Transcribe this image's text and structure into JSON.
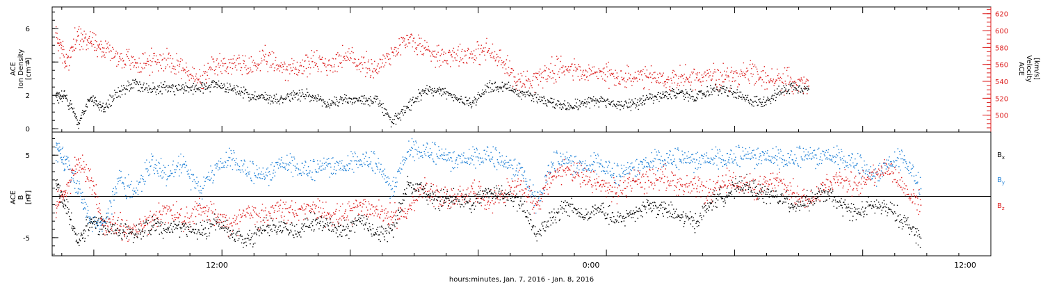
{
  "figure": {
    "xlabel": "hours:minutes, Jan.  7, 2016 - Jan.  8, 2016",
    "x_ticks": [
      "12:00",
      "0:00",
      "12:00"
    ]
  },
  "colors": {
    "black": "#000000",
    "red": "#dd1c1c",
    "blue": "#1c7fd6"
  },
  "chart_data": [
    {
      "type": "scatter",
      "panel": "top",
      "x_unit": "hours since 2016-01-07 00:00",
      "xlim": [
        6.7,
        36.0
      ],
      "ylabel_left": [
        "ACE",
        "Ion Density",
        "[cm⁻³]"
      ],
      "ylim_left": [
        -0.2,
        7.3
      ],
      "yticks_left": [
        0,
        2,
        4,
        6
      ],
      "ylabel_right": [
        "ACE",
        "Velocity",
        "[km/s]"
      ],
      "ylim_right": [
        480,
        628
      ],
      "yticks_right": [
        500,
        520,
        540,
        560,
        580,
        600,
        620
      ],
      "series": [
        {
          "name": "Ion Density",
          "axis": "left",
          "color": "#000000",
          "x": [
            6.8,
            7.1,
            7.5,
            7.9,
            8.3,
            8.8,
            9.3,
            9.8,
            10.3,
            10.8,
            11.3,
            11.8,
            12.3,
            12.8,
            13.3,
            13.8,
            14.3,
            14.8,
            15.3,
            15.8,
            16.3,
            16.8,
            17.3,
            17.8,
            18.3,
            18.8,
            19.3,
            19.8,
            20.3,
            20.8,
            21.3,
            21.8,
            22.3,
            22.8,
            23.3,
            23.8,
            24.3,
            24.8,
            25.3,
            25.8,
            26.3,
            26.8,
            27.3,
            27.8,
            28.3,
            28.8,
            29.3,
            29.8,
            30.3
          ],
          "y": [
            2.0,
            2.0,
            0.4,
            1.9,
            1.2,
            2.3,
            2.7,
            2.4,
            2.5,
            2.4,
            2.5,
            2.7,
            2.4,
            2.1,
            1.9,
            1.8,
            2.1,
            1.9,
            1.5,
            1.8,
            1.7,
            1.8,
            0.4,
            1.3,
            2.3,
            2.4,
            1.8,
            1.6,
            2.5,
            2.6,
            2.2,
            1.9,
            1.6,
            1.4,
            1.6,
            1.7,
            1.5,
            1.5,
            1.8,
            2.0,
            2.2,
            1.9,
            2.4,
            2.3,
            1.8,
            1.6,
            2.1,
            2.6,
            2.4
          ]
        },
        {
          "name": "Velocity",
          "axis": "right",
          "color": "#dd1c1c",
          "x": [
            6.8,
            7.1,
            7.5,
            7.9,
            8.3,
            8.8,
            9.3,
            9.8,
            10.3,
            10.8,
            11.3,
            11.8,
            12.3,
            12.8,
            13.3,
            13.8,
            14.3,
            14.8,
            15.3,
            15.8,
            16.3,
            16.8,
            17.3,
            17.8,
            18.3,
            18.8,
            19.3,
            19.8,
            20.3,
            20.8,
            21.3,
            21.8,
            22.3,
            22.8,
            23.3,
            23.8,
            24.3,
            24.8,
            25.3,
            25.8,
            26.3,
            26.8,
            27.3,
            27.8,
            28.3,
            28.8,
            29.3,
            29.8,
            30.3
          ],
          "y": [
            598,
            562,
            595,
            588,
            580,
            568,
            562,
            564,
            568,
            555,
            540,
            558,
            562,
            556,
            566,
            558,
            555,
            564,
            560,
            570,
            562,
            555,
            575,
            590,
            580,
            571,
            573,
            573,
            577,
            560,
            540,
            545,
            553,
            558,
            548,
            552,
            545,
            544,
            545,
            540,
            546,
            545,
            547,
            546,
            550,
            545,
            542,
            540,
            535
          ]
        }
      ]
    },
    {
      "type": "scatter",
      "panel": "bottom",
      "x_unit": "hours since 2016-01-07 00:00",
      "xlim": [
        6.7,
        36.0
      ],
      "ylabel_left": [
        "ACE",
        "B",
        "[nT]"
      ],
      "ylim_left": [
        -7.2,
        7.8
      ],
      "yticks_left": [
        -5,
        0,
        5
      ],
      "series": [
        {
          "name": "Bx",
          "color": "#000000",
          "x": [
            6.8,
            7.1,
            7.5,
            7.9,
            8.3,
            8.8,
            9.3,
            9.8,
            10.3,
            10.8,
            11.3,
            11.8,
            12.3,
            12.8,
            13.3,
            13.8,
            14.3,
            14.8,
            15.3,
            15.8,
            16.3,
            16.8,
            17.3,
            17.8,
            18.3,
            18.8,
            19.3,
            19.8,
            20.3,
            20.8,
            21.3,
            21.8,
            22.3,
            22.8,
            23.3,
            23.8,
            24.3,
            24.8,
            25.3,
            25.8,
            26.3,
            26.8,
            27.3,
            27.8,
            28.3,
            28.8,
            29.3,
            29.8,
            30.3,
            30.8,
            31.3,
            31.8,
            32.3,
            32.8,
            33.3,
            33.8
          ],
          "y": [
            2.0,
            -1.0,
            -5.5,
            -3.0,
            -3.5,
            -4.0,
            -4.5,
            -3.5,
            -4.0,
            -3.5,
            -4.5,
            -3.0,
            -4.5,
            -5.0,
            -4.0,
            -3.5,
            -4.5,
            -3.0,
            -3.5,
            -4.0,
            -3.0,
            -4.5,
            -4.0,
            1.5,
            0.5,
            -0.5,
            0.0,
            -1.0,
            1.0,
            0.0,
            -0.5,
            -4.5,
            -2.5,
            -1.0,
            -2.5,
            -1.5,
            -3.0,
            -2.0,
            -1.0,
            -1.5,
            -2.5,
            -3.0,
            -0.5,
            0.5,
            1.5,
            0.5,
            0.0,
            -1.0,
            -0.5,
            0.5,
            -1.0,
            -2.0,
            -1.0,
            -1.5,
            -3.0,
            -5.0
          ]
        },
        {
          "name": "By",
          "color": "#1c7fd6",
          "x": [
            6.8,
            7.1,
            7.5,
            7.9,
            8.3,
            8.8,
            9.3,
            9.8,
            10.3,
            10.8,
            11.3,
            11.8,
            12.3,
            12.8,
            13.3,
            13.8,
            14.3,
            14.8,
            15.3,
            15.8,
            16.3,
            16.8,
            17.3,
            17.8,
            18.3,
            18.8,
            19.3,
            19.8,
            20.3,
            20.8,
            21.3,
            21.8,
            22.3,
            22.8,
            23.3,
            23.8,
            24.3,
            24.8,
            25.3,
            25.8,
            26.3,
            26.8,
            27.3,
            27.8,
            28.3,
            28.8,
            29.3,
            29.8,
            30.3,
            30.8,
            31.3,
            31.8,
            32.3,
            32.8,
            33.3,
            33.8
          ],
          "y": [
            6.0,
            4.5,
            1.0,
            -3.0,
            -3.5,
            2.0,
            0.5,
            4.5,
            2.5,
            4.0,
            0.5,
            3.5,
            4.5,
            3.0,
            2.5,
            4.0,
            3.5,
            3.0,
            4.0,
            3.5,
            4.5,
            4.0,
            1.0,
            5.5,
            5.5,
            5.0,
            4.5,
            4.5,
            5.0,
            4.0,
            3.5,
            -1.0,
            4.0,
            4.5,
            3.5,
            4.0,
            2.5,
            3.5,
            4.0,
            4.5,
            4.5,
            4.5,
            4.5,
            4.5,
            5.0,
            5.0,
            4.5,
            4.5,
            5.0,
            5.0,
            4.5,
            4.0,
            2.5,
            4.0,
            4.5,
            1.0
          ]
        },
        {
          "name": "Bz",
          "color": "#dd1c1c",
          "x": [
            6.8,
            7.1,
            7.5,
            7.9,
            8.3,
            8.8,
            9.3,
            9.8,
            10.3,
            10.8,
            11.3,
            11.8,
            12.3,
            12.8,
            13.3,
            13.8,
            14.3,
            14.8,
            15.3,
            15.8,
            16.3,
            16.8,
            17.3,
            17.8,
            18.3,
            18.8,
            19.3,
            19.8,
            20.3,
            20.8,
            21.3,
            21.8,
            22.3,
            22.8,
            23.3,
            23.8,
            24.3,
            24.8,
            25.3,
            25.8,
            26.3,
            26.8,
            27.3,
            27.8,
            28.3,
            28.8,
            29.3,
            29.8,
            30.3,
            30.8,
            31.3,
            31.8,
            32.3,
            32.8,
            33.3,
            33.8
          ],
          "y": [
            -1.0,
            0.5,
            4.5,
            2.0,
            -3.5,
            -3.5,
            -4.0,
            -2.5,
            -1.5,
            -3.0,
            -1.0,
            -2.5,
            -3.5,
            -2.0,
            -2.5,
            -1.0,
            -2.0,
            -1.5,
            -2.0,
            -2.5,
            -1.0,
            -1.5,
            -2.5,
            -1.5,
            1.0,
            0.0,
            -0.5,
            1.0,
            -0.5,
            0.5,
            1.5,
            -1.0,
            2.5,
            3.5,
            2.0,
            1.5,
            0.5,
            2.0,
            2.0,
            2.5,
            1.5,
            1.0,
            0.5,
            2.0,
            1.5,
            1.0,
            2.0,
            0.5,
            -0.5,
            1.5,
            2.5,
            1.0,
            3.0,
            3.5,
            1.0,
            -1.0
          ]
        }
      ]
    }
  ],
  "legend": {
    "bx_base": "B",
    "bx_sub": "x",
    "by_base": "B",
    "by_sub": "y",
    "bz_base": "B",
    "bz_sub": "z"
  }
}
